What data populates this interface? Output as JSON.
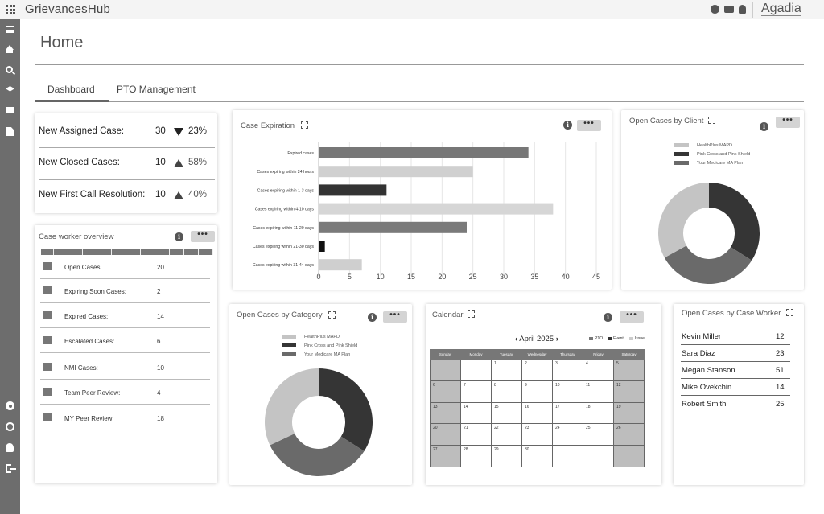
{
  "topbar": {
    "app_name": "GrievancesHub",
    "logo_text": "Agadia",
    "icons": [
      "grid-icon",
      "add-circle-icon",
      "card-icon",
      "bell-icon"
    ]
  },
  "sidebar": {
    "icons": [
      "menu-icon",
      "home-icon",
      "search-icon",
      "layers-icon",
      "folder-icon",
      "document-icon",
      "gear-icon",
      "lifebuoy-icon",
      "user-icon",
      "logout-icon"
    ]
  },
  "page": {
    "title": "Home",
    "tabs": [
      {
        "label": "Dashboard",
        "active": true
      },
      {
        "label": "PTO Management",
        "active": false
      }
    ]
  },
  "stats": [
    {
      "label": "New Assigned Case:",
      "value": "30",
      "trend": "down",
      "pct": "23%"
    },
    {
      "label": "New Closed Cases:",
      "value": "10",
      "trend": "up",
      "pct": "58%"
    },
    {
      "label": "New First Call Resolution:",
      "value": "10",
      "trend": "up",
      "pct": "40%"
    }
  ],
  "case_worker_overview": {
    "title": "Case worker overview",
    "more": "•••",
    "info": "i",
    "rows": [
      {
        "label": "Open Cases:",
        "value": "20"
      },
      {
        "label": "Expiring Soon Cases:",
        "value": "2"
      },
      {
        "label": "Expired Cases:",
        "value": "14"
      },
      {
        "label": "Escalated Cases:",
        "value": "6"
      },
      {
        "label": "NMI Cases:",
        "value": "10"
      },
      {
        "label": "Team Peer Review:",
        "value": "4"
      },
      {
        "label": "MY Peer Review:",
        "value": "18"
      }
    ]
  },
  "case_expiration": {
    "title": "Case Expiration",
    "more": "•••",
    "info": "i"
  },
  "open_by_client": {
    "title": "Open Cases by Client",
    "more": "•••",
    "info": "i"
  },
  "open_by_category": {
    "title": "Open Cases by Category",
    "more": "•••",
    "info": "i"
  },
  "calendar": {
    "title": "Calendar",
    "more": "•••",
    "info": "i",
    "month_label": "April 2025",
    "prev": "‹",
    "next": "›",
    "legend": [
      "PTO",
      "Event",
      "Issue"
    ],
    "legend_colors": [
      "#777777",
      "#333333",
      "#cccccc"
    ],
    "weekdays": [
      "Sunday",
      "Monday",
      "Tuesday",
      "Wednesday",
      "Thursday",
      "Friday",
      "Saturday"
    ],
    "weeks": [
      [
        "",
        "",
        "1",
        "2",
        "3",
        "4",
        "5"
      ],
      [
        "6",
        "7",
        "8",
        "9",
        "10",
        "11",
        "12"
      ],
      [
        "13",
        "14",
        "15",
        "16",
        "17",
        "18",
        "19"
      ],
      [
        "20",
        "21",
        "22",
        "23",
        "24",
        "25",
        "26"
      ],
      [
        "27",
        "28",
        "29",
        "30",
        "",
        "",
        ""
      ]
    ]
  },
  "open_by_worker": {
    "title": "Open Cases by Case Worker",
    "rows": [
      {
        "name": "Kevin Miller",
        "value": "12"
      },
      {
        "name": "Sara Diaz",
        "value": "23"
      },
      {
        "name": "Megan Stanson",
        "value": "51"
      },
      {
        "name": "Mike Ovekchin",
        "value": "14"
      },
      {
        "name": "Robert Smith",
        "value": "25"
      }
    ]
  },
  "chart_data": [
    {
      "type": "bar",
      "orientation": "horizontal",
      "title": "Case Expiration",
      "categories": [
        "Expired cases",
        "Cases expiring within 24 hours",
        "Cases expiring within 1-3 days",
        "Cases expiring within 4-10 days",
        "Cases expiring within 11-20 days",
        "Cases expiring within 21-30 days",
        "Cases expiring within 31-44 days"
      ],
      "values": [
        34,
        25,
        11,
        38,
        24,
        1,
        7
      ],
      "colors": [
        "#777777",
        "#d0d0d0",
        "#333333",
        "#d6d6d6",
        "#7a7a7a",
        "#111111",
        "#cfcfcf"
      ],
      "xlim": [
        0,
        45
      ],
      "xticks": [
        0,
        5,
        10,
        15,
        20,
        25,
        30,
        35,
        40,
        45
      ],
      "grid": true
    },
    {
      "type": "pie",
      "style": "donut",
      "title": "Open Cases by Client",
      "labels": [
        "HealthPlus MAPD",
        "Pink Cross and Pink Shield",
        "Your Medicare MA Plan"
      ],
      "values": [
        33,
        34,
        33
      ],
      "colors": [
        "#c4c4c4",
        "#353535",
        "#6a6a6a"
      ],
      "legend": "top"
    },
    {
      "type": "pie",
      "style": "donut",
      "title": "Open Cases by Category",
      "labels": [
        "HealthPlus MAPD",
        "Pink Cross and Pink Shield",
        "Your Medicare MA Plan"
      ],
      "values": [
        32,
        34,
        34
      ],
      "colors": [
        "#c4c4c4",
        "#353535",
        "#6a6a6a"
      ],
      "legend": "top"
    }
  ]
}
